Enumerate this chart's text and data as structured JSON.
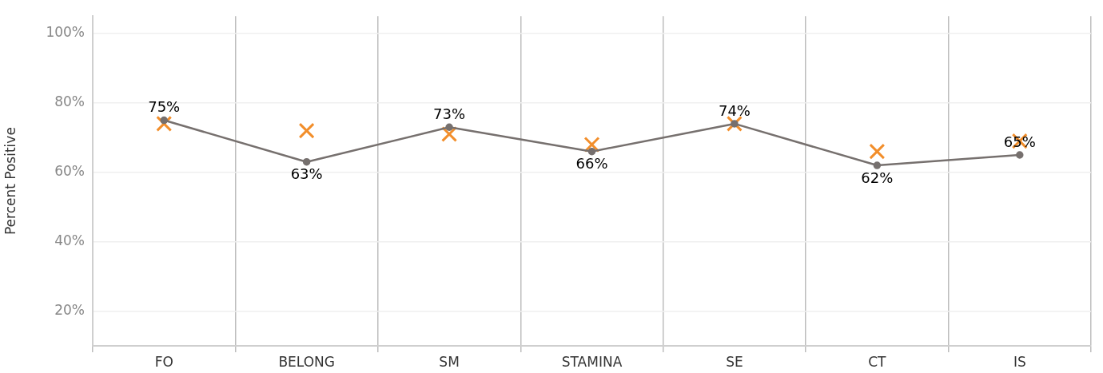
{
  "chart_data": {
    "type": "line",
    "ylabel": "Percent Positive",
    "categories": [
      "FO",
      "BELONG",
      "SM",
      "STAMINA",
      "SE",
      "CT",
      "IS"
    ],
    "series": [
      {
        "type": "line",
        "color": "#76706e",
        "marker": "circle",
        "values": [
          75,
          63,
          73,
          66,
          74,
          62,
          65
        ],
        "value_labels": [
          "75%",
          "63%",
          "73%",
          "66%",
          "74%",
          "62%",
          "65%"
        ]
      },
      {
        "type": "scatter",
        "color": "#f28e2b",
        "marker": "cross",
        "values": [
          74,
          72,
          71,
          68,
          74,
          66,
          69
        ]
      }
    ],
    "ylim": [
      10,
      105
    ],
    "yticks": [
      {
        "value": 20,
        "label": "20%"
      },
      {
        "value": 40,
        "label": "40%"
      },
      {
        "value": 60,
        "label": "60%"
      },
      {
        "value": 80,
        "label": "80%"
      },
      {
        "value": 100,
        "label": "100%"
      }
    ],
    "grid": true
  }
}
